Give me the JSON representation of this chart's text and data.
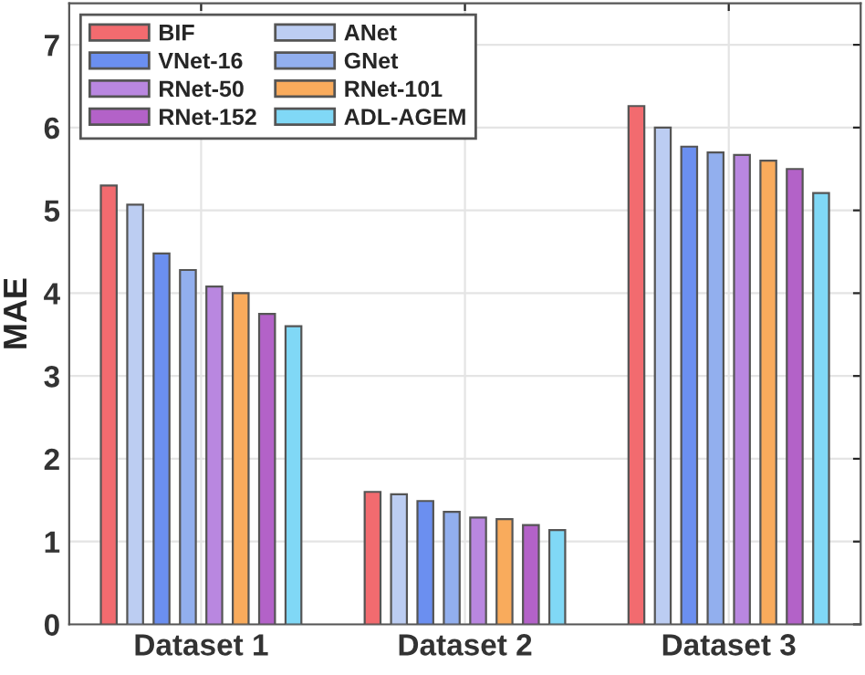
{
  "chart_data": {
    "type": "bar",
    "ylabel": "MAE",
    "categories": [
      "Dataset 1",
      "Dataset 2",
      "Dataset 3"
    ],
    "series": [
      {
        "name": "BIF",
        "color": "#f26b6f",
        "values": [
          5.3,
          1.6,
          6.26
        ]
      },
      {
        "name": "ANet",
        "color": "#bccdf2",
        "values": [
          5.07,
          1.57,
          6.0
        ]
      },
      {
        "name": "VNet-16",
        "color": "#6b8ff0",
        "values": [
          4.48,
          1.49,
          5.77
        ]
      },
      {
        "name": "GNet",
        "color": "#92afee",
        "values": [
          4.28,
          1.36,
          5.7
        ]
      },
      {
        "name": "RNet-50",
        "color": "#b987e0",
        "values": [
          4.08,
          1.29,
          5.67
        ]
      },
      {
        "name": "RNet-101",
        "color": "#f9ab5c",
        "values": [
          4.0,
          1.27,
          5.6
        ]
      },
      {
        "name": "RNet-152",
        "color": "#b362c8",
        "values": [
          3.75,
          1.2,
          5.5
        ]
      },
      {
        "name": "ADL-AGEM",
        "color": "#80d8f6",
        "values": [
          3.6,
          1.14,
          5.21
        ]
      }
    ],
    "ylim": [
      0,
      7.5
    ],
    "yticks": [
      0,
      1,
      2,
      3,
      4,
      5,
      6,
      7
    ],
    "grid": true,
    "legend": "top left"
  }
}
